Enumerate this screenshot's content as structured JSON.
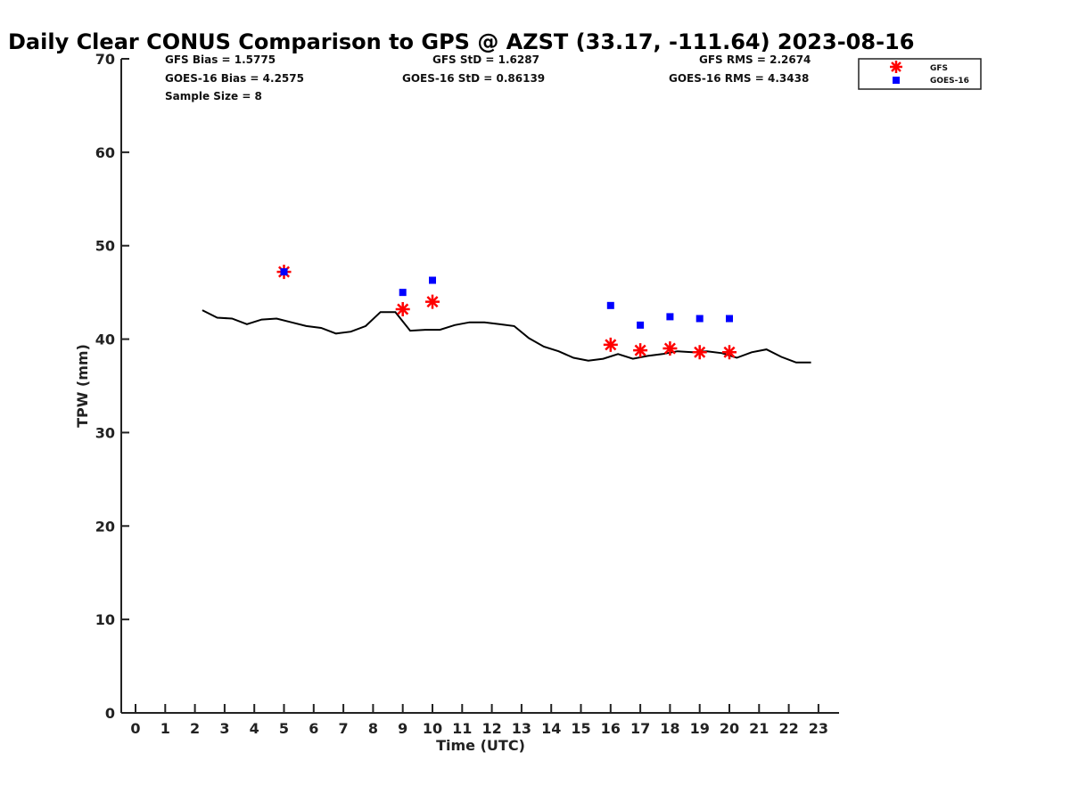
{
  "chart_data": {
    "type": "scatter",
    "title": "Daily Clear CONUS Comparison to GPS @ AZST (33.17, -111.64) 2023-08-16",
    "xlabel": "Time (UTC)",
    "ylabel": "TPW (mm)",
    "xlim": [
      -0.5,
      23.7
    ],
    "ylim": [
      0,
      70
    ],
    "x_ticks": [
      0,
      1,
      2,
      3,
      4,
      5,
      6,
      7,
      8,
      9,
      10,
      11,
      12,
      13,
      14,
      15,
      16,
      17,
      18,
      19,
      20,
      21,
      22,
      23
    ],
    "y_ticks": [
      0,
      10,
      20,
      30,
      40,
      50,
      60,
      70
    ],
    "grid": false,
    "legend_position": "top-right",
    "stats": {
      "gfs_bias": "GFS Bias = 1.5775",
      "gfs_std": "GFS StD = 1.6287",
      "gfs_rms": "GFS RMS = 2.2674",
      "goes_bias": "GOES-16 Bias = 4.2575",
      "goes_std": "GOES-16 StD = 0.86139",
      "goes_rms": "GOES-16 RMS = 4.3438",
      "sample_size": "Sample Size = 8"
    },
    "series": [
      {
        "name": "GFS",
        "marker": "asterisk",
        "color": "#ff0000",
        "x": [
          5,
          9,
          10,
          16,
          17,
          18,
          19,
          20
        ],
        "y": [
          47.2,
          43.2,
          44.0,
          39.4,
          38.8,
          39.0,
          38.6,
          38.6
        ]
      },
      {
        "name": "GOES-16",
        "marker": "square",
        "color": "#0000ff",
        "x": [
          5,
          9,
          10,
          16,
          17,
          18,
          19,
          20
        ],
        "y": [
          47.2,
          45.0,
          46.3,
          43.6,
          41.5,
          42.4,
          42.2,
          42.2
        ]
      },
      {
        "marker": "line",
        "color": "#000000",
        "x": [
          2.25,
          2.75,
          3.25,
          3.75,
          4.25,
          4.75,
          5.25,
          5.75,
          6.25,
          6.75,
          7.25,
          7.75,
          8.25,
          8.75,
          9.25,
          9.75,
          10.25,
          10.75,
          11.25,
          11.75,
          12.25,
          12.75,
          13.25,
          13.75,
          14.25,
          14.75,
          15.25,
          15.75,
          16.25,
          16.75,
          17.25,
          17.75,
          18.25,
          18.75,
          19.25,
          19.75,
          20.25,
          20.75,
          21.25,
          21.75,
          22.25,
          22.75
        ],
        "y": [
          43.1,
          42.3,
          42.2,
          41.6,
          42.1,
          42.2,
          41.8,
          41.4,
          41.2,
          40.6,
          40.8,
          41.4,
          42.9,
          42.9,
          40.9,
          41.0,
          41.0,
          41.5,
          41.8,
          41.8,
          41.6,
          41.4,
          40.1,
          39.2,
          38.7,
          38.0,
          37.7,
          37.9,
          38.4,
          37.9,
          38.2,
          38.4,
          38.7,
          38.6,
          38.7,
          38.5,
          38.0,
          38.6,
          38.9,
          38.1,
          37.5,
          37.5
        ]
      }
    ]
  }
}
